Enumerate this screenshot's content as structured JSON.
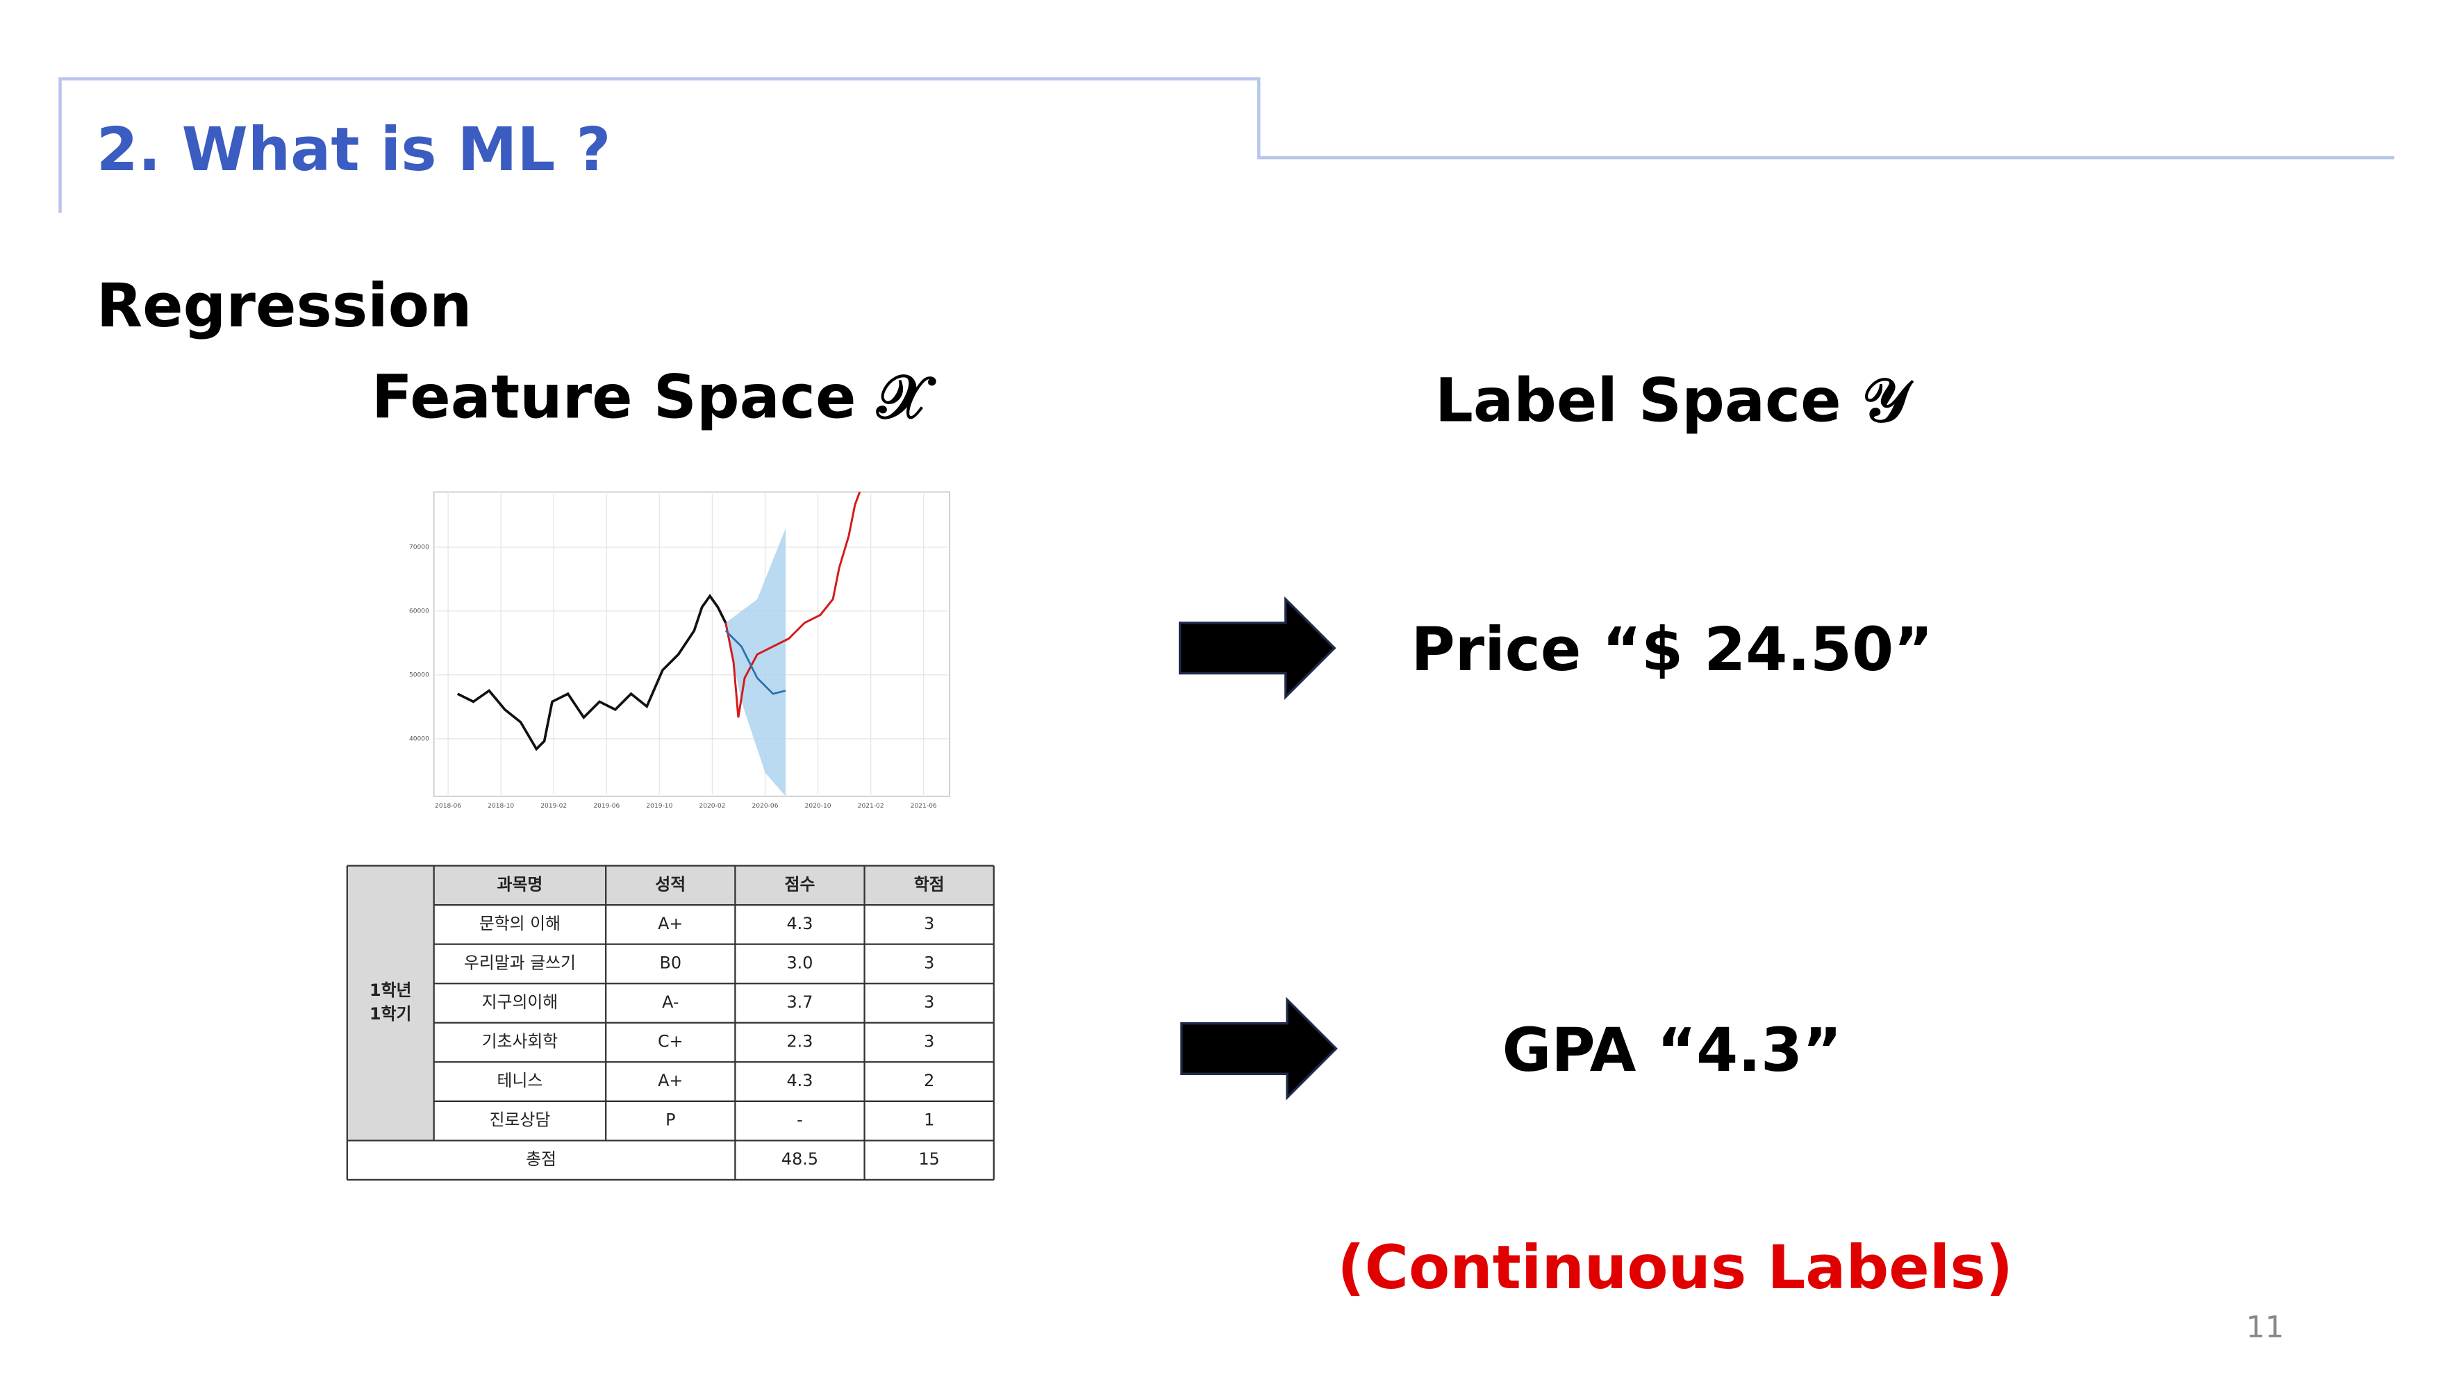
{
  "header": {
    "title": "2. What is ML ?"
  },
  "section": "Regression",
  "feature_space": "Feature Space 𝒳",
  "label_space": "Label Space 𝒴",
  "feature_chart": {
    "yticks": [
      "70000",
      "60000",
      "50000",
      "40000"
    ],
    "xticks": [
      "2018-06",
      "2018-10",
      "2019-02",
      "2019-06",
      "2019-10",
      "2020-02",
      "2020-06",
      "2020-10",
      "2021-02",
      "2021-06"
    ]
  },
  "grade_table": {
    "columns": [
      "과목명",
      "성적",
      "점수",
      "학점"
    ],
    "term": [
      "1학년",
      "1학기"
    ],
    "rows": [
      [
        "문학의 이해",
        "A+",
        "4.3",
        "3"
      ],
      [
        "우리말과 글쓰기",
        "B0",
        "3.0",
        "3"
      ],
      [
        "지구의이해",
        "A-",
        "3.7",
        "3"
      ],
      [
        "기초사회학",
        "C+",
        "2.3",
        "3"
      ],
      [
        "테니스",
        "A+",
        "4.3",
        "2"
      ],
      [
        "진로상담",
        "P",
        "-",
        "1"
      ]
    ],
    "total": [
      "총점",
      "48.5",
      "15"
    ]
  },
  "labels": [
    "Price “$ 24.50”",
    "GPA “4.3”"
  ],
  "note": "(Continuous Labels)",
  "page_number": "11"
}
